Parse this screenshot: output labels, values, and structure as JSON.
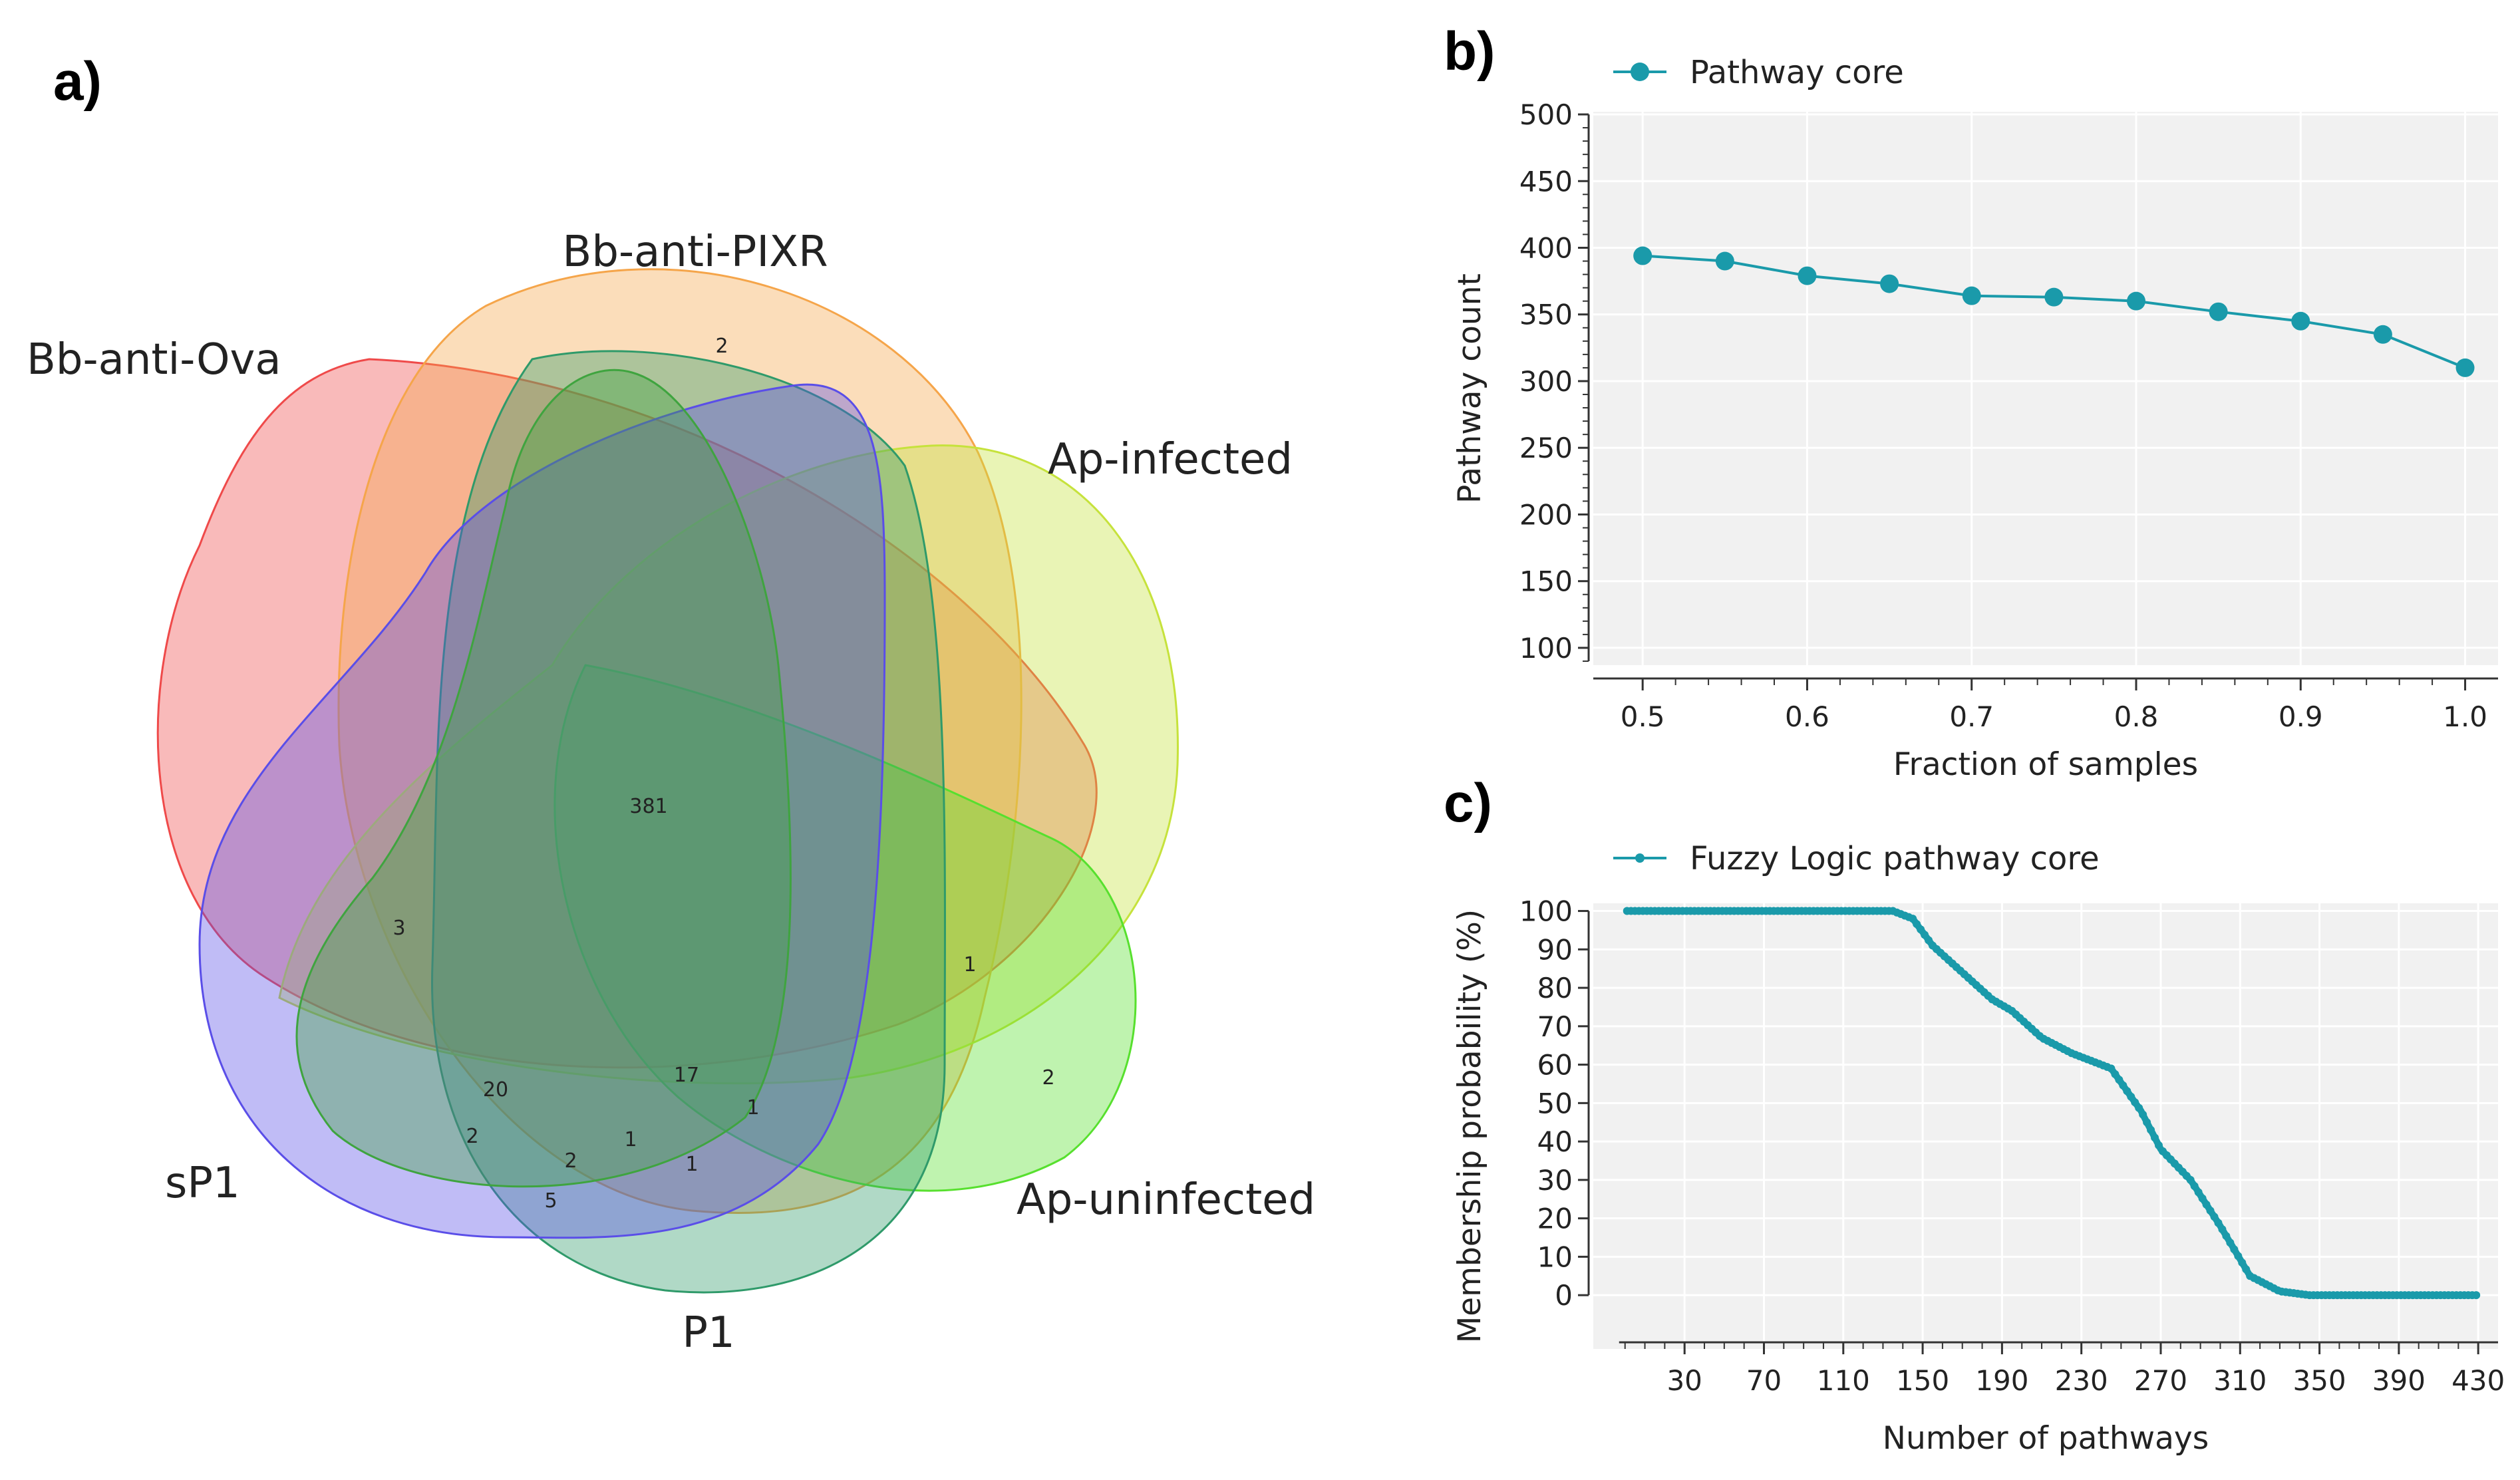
{
  "panels": {
    "a": "a)",
    "b": "b)",
    "c": "c)"
  },
  "venn": {
    "sets": [
      {
        "name": "Bb-anti-Ova",
        "color": "#ef4a4a"
      },
      {
        "name": "Bb-anti-PIXR",
        "color": "#f5a54a"
      },
      {
        "name": "Ap-infected",
        "color": "#c6e23c"
      },
      {
        "name": "Ap-uninfected",
        "color": "#57e02e"
      },
      {
        "name": "P1",
        "color": "#2f9a6a"
      },
      {
        "name": "sP1",
        "color": "#5a4ee8"
      },
      {
        "name": "",
        "color": "#3fa43f"
      }
    ],
    "region_counts": [
      "2",
      "381",
      "3",
      "1",
      "2",
      "20",
      "17",
      "1",
      "2",
      "2",
      "1",
      "1",
      "5"
    ]
  },
  "chart_data": [
    {
      "type": "line",
      "title": "",
      "legend": "Pathway core",
      "legend_position": "top-left",
      "xlabel": "Fraction of samples",
      "ylabel": "Pathway count",
      "x": [
        0.5,
        0.55,
        0.6,
        0.65,
        0.7,
        0.75,
        0.8,
        0.85,
        0.9,
        0.95,
        1.0
      ],
      "y": [
        394,
        390,
        379,
        373,
        364,
        363,
        360,
        352,
        345,
        335,
        310
      ],
      "xlim": [
        0.47,
        1.02
      ],
      "ylim": [
        87,
        502
      ],
      "xticks": [
        "0.5",
        "0.6",
        "0.7",
        "0.8",
        "0.9",
        "1.0"
      ],
      "yticks": [
        "100",
        "150",
        "200",
        "250",
        "300",
        "350",
        "400",
        "450",
        "500"
      ],
      "grid": true,
      "color": "#1a9aaa"
    },
    {
      "type": "line",
      "title": "",
      "legend": "Fuzzy Logic pathway core",
      "legend_position": "top-left",
      "xlabel": "Number of pathways",
      "ylabel": "Membership probability (%)",
      "x_range": [
        1,
        430
      ],
      "profile": [
        [
          1,
          100
        ],
        [
          135,
          100
        ],
        [
          145,
          98
        ],
        [
          155,
          91
        ],
        [
          170,
          84
        ],
        [
          185,
          77
        ],
        [
          195,
          74
        ],
        [
          210,
          67
        ],
        [
          225,
          63
        ],
        [
          245,
          59
        ],
        [
          260,
          48
        ],
        [
          270,
          38
        ],
        [
          285,
          30
        ],
        [
          300,
          18
        ],
        [
          315,
          5
        ],
        [
          330,
          1
        ],
        [
          345,
          0
        ],
        [
          430,
          0
        ]
      ],
      "xlim": [
        -16,
        440
      ],
      "ylim": [
        -14,
        102
      ],
      "xticks": [
        "30",
        "70",
        "110",
        "150",
        "190",
        "230",
        "270",
        "310",
        "350",
        "390",
        "430"
      ],
      "yticks": [
        "0",
        "10",
        "20",
        "30",
        "40",
        "50",
        "60",
        "70",
        "80",
        "90",
        "100"
      ],
      "grid": true,
      "color": "#1a9aaa"
    }
  ]
}
